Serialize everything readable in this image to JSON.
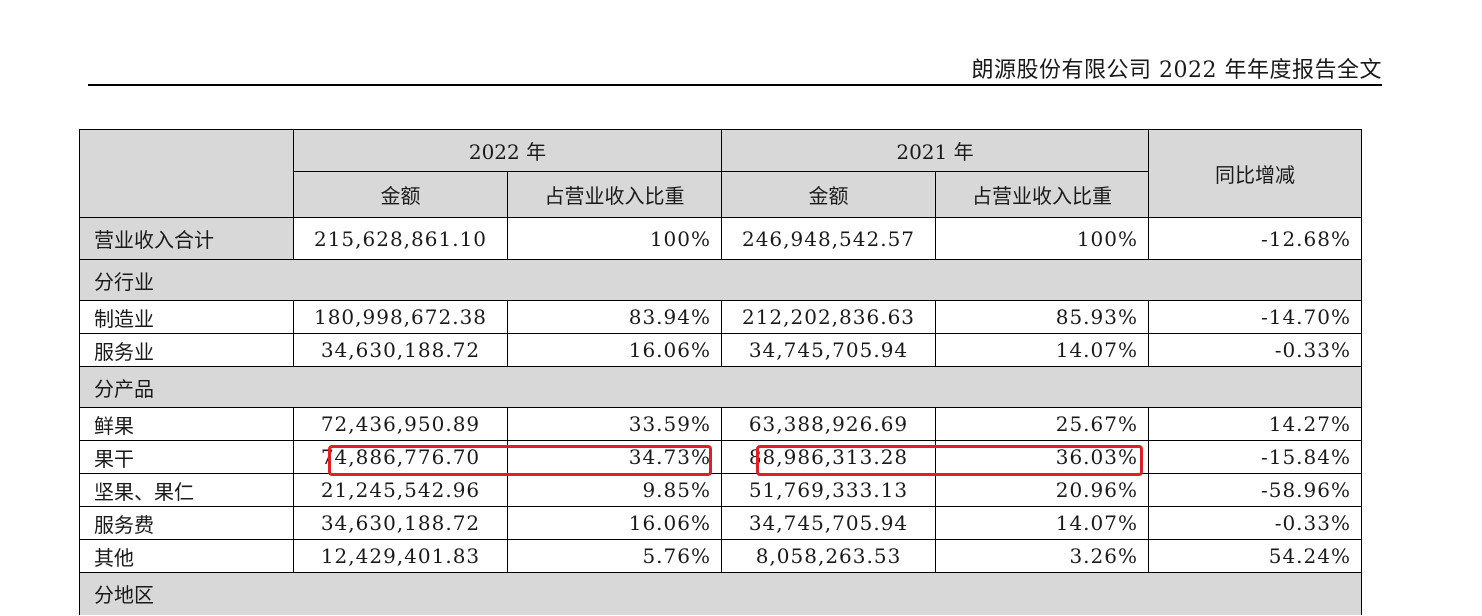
{
  "header": {
    "title": "朗源股份有限公司 2022 年年度报告全文"
  },
  "table": {
    "year_2022": "2022 年",
    "year_2021": "2021 年",
    "yoy_label": "同比增减",
    "amount_label": "金额",
    "ratio_label": "占营业收入比重",
    "total": {
      "label": "营业收入合计",
      "amt2022": "215,628,861.10",
      "pct2022": "100%",
      "amt2021": "246,948,542.57",
      "pct2021": "100%",
      "yoy": "-12.68%"
    },
    "sections": {
      "industry": "分行业",
      "product": "分产品",
      "region": "分地区"
    },
    "industry_rows": [
      {
        "label": "制造业",
        "amt2022": "180,998,672.38",
        "pct2022": "83.94%",
        "amt2021": "212,202,836.63",
        "pct2021": "85.93%",
        "yoy": "-14.70%"
      },
      {
        "label": "服务业",
        "amt2022": "34,630,188.72",
        "pct2022": "16.06%",
        "amt2021": "34,745,705.94",
        "pct2021": "14.07%",
        "yoy": "-0.33%"
      }
    ],
    "product_rows": [
      {
        "label": "鲜果",
        "amt2022": "72,436,950.89",
        "pct2022": "33.59%",
        "amt2021": "63,388,926.69",
        "pct2021": "25.67%",
        "yoy": "14.27%"
      },
      {
        "label": "果干",
        "amt2022": "74,886,776.70",
        "pct2022": "34.73%",
        "amt2021": "88,986,313.28",
        "pct2021": "36.03%",
        "yoy": "-15.84%"
      },
      {
        "label": "坚果、果仁",
        "amt2022": "21,245,542.96",
        "pct2022": "9.85%",
        "amt2021": "51,769,333.13",
        "pct2021": "20.96%",
        "yoy": "-58.96%"
      },
      {
        "label": "服务费",
        "amt2022": "34,630,188.72",
        "pct2022": "16.06%",
        "amt2021": "34,745,705.94",
        "pct2021": "14.07%",
        "yoy": "-0.33%"
      },
      {
        "label": "其他",
        "amt2022": "12,429,401.83",
        "pct2022": "5.76%",
        "amt2021": "8,058,263.53",
        "pct2021": "3.26%",
        "yoy": "54.24%"
      }
    ]
  },
  "colors": {
    "highlight": "#e02020",
    "shade": "#d8d8d8"
  }
}
